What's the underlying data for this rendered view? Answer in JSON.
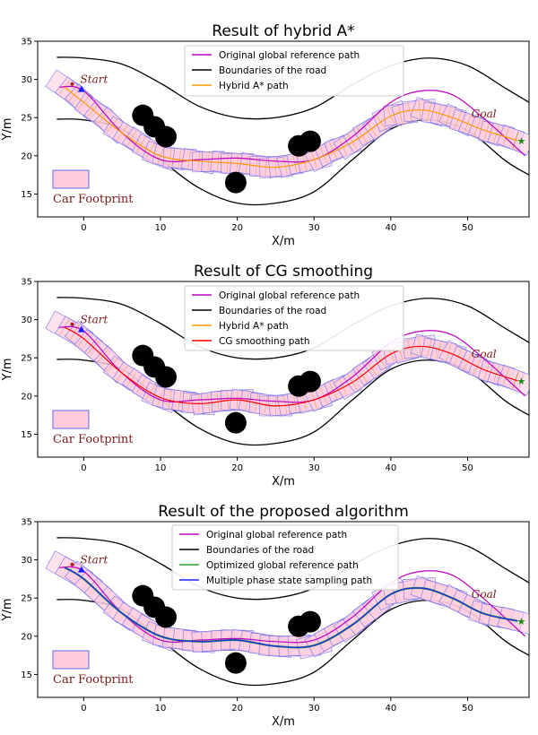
{
  "chart_data": [
    {
      "type": "line",
      "title": "Result of hybrid A*",
      "xlabel": "X/m",
      "ylabel": "Y/m",
      "xlim": [
        -6,
        58
      ],
      "ylim": [
        12,
        35
      ],
      "xticks": [
        0,
        10,
        20,
        30,
        40,
        50
      ],
      "yticks": [
        15,
        20,
        25,
        30,
        35
      ],
      "start_label": "Start",
      "goal_label": "Goal",
      "footprint_label": "Car Footprint",
      "legend": [
        {
          "label": "Original global reference path",
          "color": "#bf00bf"
        },
        {
          "label": "Boundaries of the road",
          "color": "#000000"
        },
        {
          "label": "Hybrid A* path",
          "color": "#ff9900"
        }
      ],
      "planned_path": {
        "name": "Hybrid A* path",
        "color": "#ff9900",
        "x": [
          -2.5,
          0,
          5,
          10,
          15,
          20,
          25,
          30,
          35,
          40,
          44,
          48,
          52,
          56.5
        ],
        "y": [
          29,
          27,
          23,
          20,
          19.3,
          19,
          18.5,
          19.5,
          21.8,
          25.2,
          26,
          25,
          23.4,
          22
        ]
      },
      "footprint_wobble": 0.8,
      "footprint_ticks": true
    },
    {
      "type": "line",
      "title": "Result of CG smoothing",
      "xlabel": "X/m",
      "ylabel": "Y/m",
      "xlim": [
        -6,
        58
      ],
      "ylim": [
        12,
        35
      ],
      "xticks": [
        0,
        10,
        20,
        30,
        40,
        50
      ],
      "yticks": [
        15,
        20,
        25,
        30,
        35
      ],
      "start_label": "Start",
      "goal_label": "Goal",
      "footprint_label": "Car Footprint",
      "legend": [
        {
          "label": "Original global reference path",
          "color": "#bf00bf"
        },
        {
          "label": "Boundaries of the road",
          "color": "#000000"
        },
        {
          "label": "Hybrid A* path",
          "color": "#ff9900"
        },
        {
          "label": "CG smoothing path",
          "color": "#ff0000"
        }
      ],
      "planned_path": {
        "name": "CG smoothing path",
        "color": "#ff0000",
        "x": [
          -2.5,
          0,
          5,
          10,
          15,
          20,
          25,
          30,
          35,
          40,
          44,
          48,
          52,
          56.5
        ],
        "y": [
          29,
          27.5,
          23,
          19.8,
          19,
          19.5,
          18.7,
          19.5,
          21.8,
          25.5,
          26.5,
          25.5,
          23.5,
          22
        ]
      },
      "footprint_wobble": 0.5,
      "footprint_ticks": true
    },
    {
      "type": "line",
      "title": "Result of the proposed algorithm",
      "xlabel": "X/m",
      "ylabel": "Y/m",
      "xlim": [
        -6,
        58
      ],
      "ylim": [
        12,
        35
      ],
      "xticks": [
        0,
        10,
        20,
        30,
        40,
        50
      ],
      "yticks": [
        15,
        20,
        25,
        30,
        35
      ],
      "start_label": "Start",
      "goal_label": "Goal",
      "footprint_label": "Car Footprint",
      "legend": [
        {
          "label": "Original global reference path",
          "color": "#bf00bf"
        },
        {
          "label": "Boundaries of the road",
          "color": "#000000"
        },
        {
          "label": "Optimized global reference path",
          "color": "#2ca02c"
        },
        {
          "label": "Multiple phase state sampling path",
          "color": "#2222ff"
        }
      ],
      "planned_path": {
        "name": "Multiple phase state sampling path",
        "color": "#2222ff",
        "x": [
          -2.5,
          0,
          5,
          10,
          15,
          20,
          25,
          30,
          35,
          40,
          44,
          48,
          52,
          56.5
        ],
        "y": [
          29,
          27.5,
          23,
          20,
          19.3,
          19.5,
          18.7,
          18.8,
          21.5,
          25.5,
          26.3,
          25,
          23,
          22
        ]
      },
      "optimized_path": {
        "name": "Optimized global reference path",
        "color": "#2ca02c",
        "x": [
          -2.5,
          0,
          5,
          10,
          15,
          20,
          25,
          30,
          35,
          40,
          44,
          48,
          52,
          56.5
        ],
        "y": [
          29,
          27.5,
          23,
          20,
          19.3,
          19.5,
          18.7,
          18.8,
          21.5,
          25.5,
          26.3,
          25,
          23,
          22
        ]
      },
      "footprint_wobble": 0.3,
      "footprint_ticks": false
    }
  ],
  "shared": {
    "reference_path": {
      "color": "#bf00bf",
      "x": [
        -3.2,
        0,
        5,
        10,
        15,
        20,
        25,
        30,
        35,
        40,
        44,
        48,
        52,
        57.5
      ],
      "y": [
        29,
        28.5,
        23,
        19.5,
        19.5,
        19.7,
        19.3,
        19.5,
        22.5,
        27,
        28.5,
        28,
        25,
        20
      ]
    },
    "road_upper": {
      "color": "#000000",
      "x": [
        -3.5,
        0,
        5,
        10,
        15,
        20,
        25,
        30,
        35,
        40,
        45,
        50,
        55,
        58
      ],
      "y": [
        32.9,
        32.8,
        32,
        29.5,
        26.5,
        25,
        25,
        26.3,
        29.3,
        31.8,
        32.8,
        31.8,
        28.8,
        27
      ]
    },
    "road_lower": {
      "color": "#000000",
      "x": [
        -3.5,
        0,
        5,
        10,
        15,
        20,
        25,
        30,
        35,
        40,
        45,
        50,
        55,
        58
      ],
      "y": [
        24.8,
        24.7,
        23.5,
        19.5,
        15.8,
        13.8,
        13.8,
        15.3,
        19.5,
        23.5,
        24.7,
        23.3,
        19.3,
        17.5
      ]
    },
    "obstacles": [
      {
        "x": 7.7,
        "y": 25.3,
        "r": 1.4
      },
      {
        "x": 9.2,
        "y": 23.8,
        "r": 1.4
      },
      {
        "x": 10.7,
        "y": 22.5,
        "r": 1.4
      },
      {
        "x": 19.8,
        "y": 16.5,
        "r": 1.4
      },
      {
        "x": 28,
        "y": 21.3,
        "r": 1.4
      },
      {
        "x": 29.5,
        "y": 21.9,
        "r": 1.4
      }
    ],
    "start_point": {
      "x": -1.5,
      "y": 29.4
    },
    "start_marker": {
      "x": -0.3,
      "y": 28.7
    },
    "goal_point": {
      "x": 57,
      "y": 22
    },
    "footprint_fill": "#ffccdd",
    "footprint_edge": "#6666ee",
    "annotation_color": "#7a1a1a"
  }
}
